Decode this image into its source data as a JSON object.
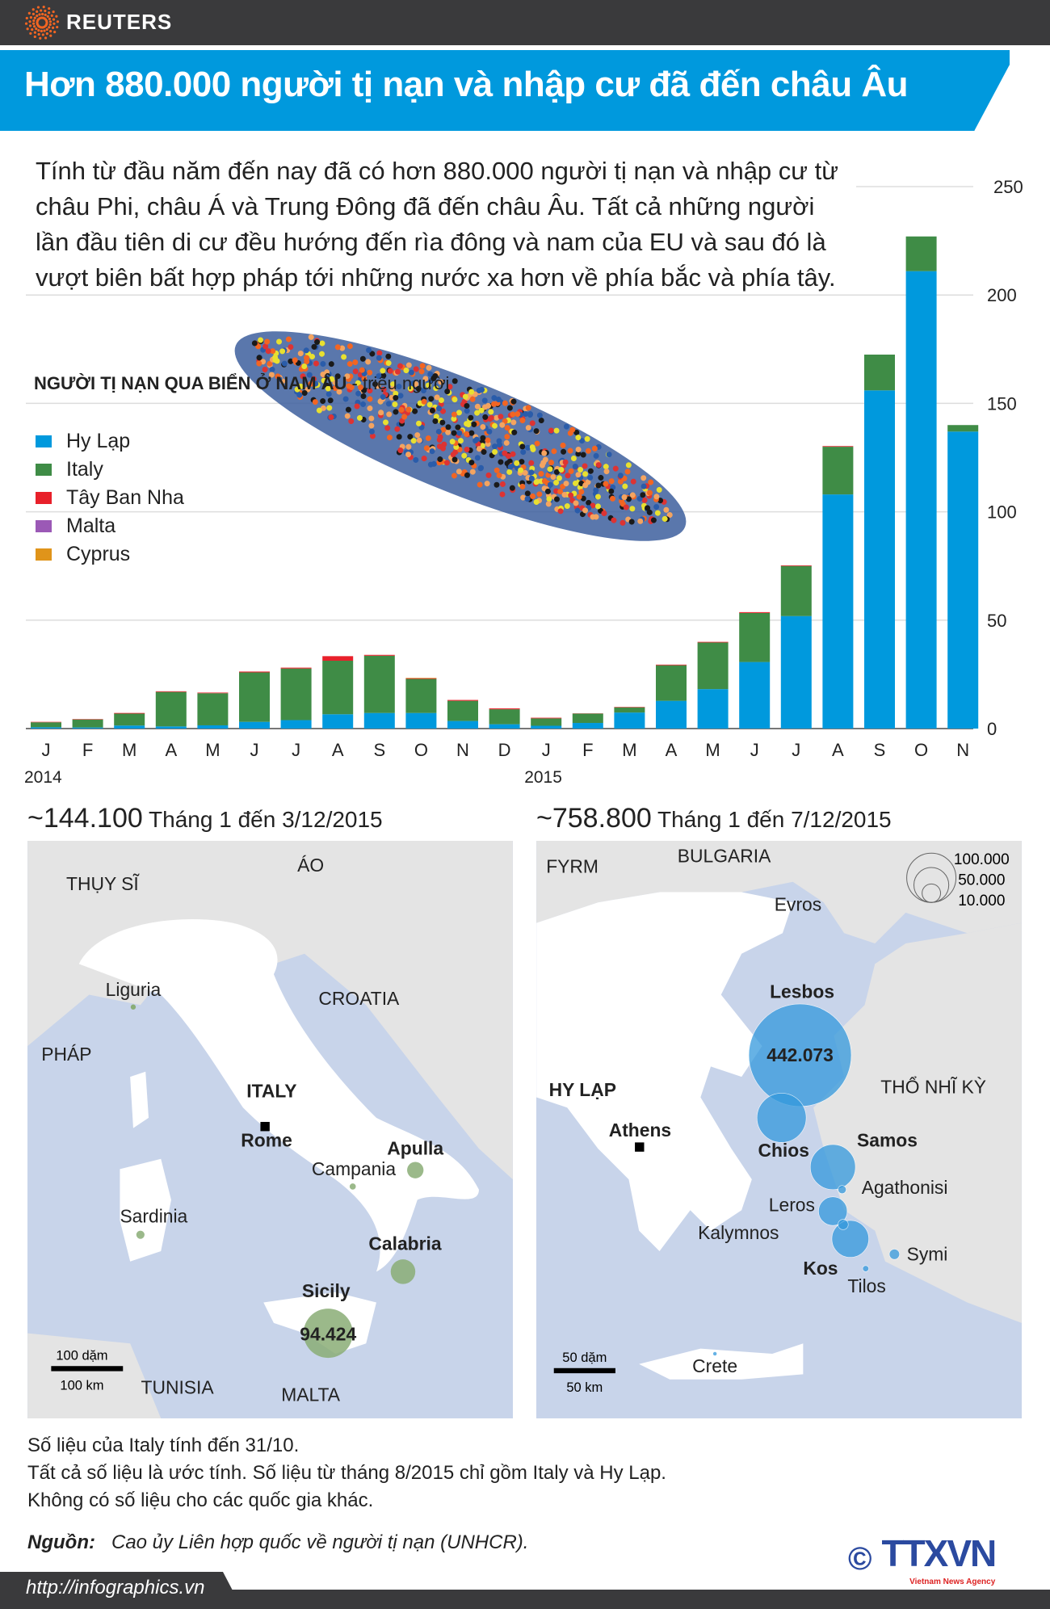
{
  "brand": "REUTERS",
  "title": "Hơn 880.000 người tị nạn và nhập cư đã đến châu Âu",
  "intro": "Tính từ đầu năm đến nay đã có hơn 880.000 người tị nạn và nhập cư từ châu Phi, châu Á và Trung Đông đã đến châu Âu. Tất cả những người lần đầu tiên di cư đều hướng đến rìa đông và nam của EU và sau đó là vượt biên bất hợp pháp tới những nước xa hơn về phía bắc và phía tây.",
  "chart_data": {
    "type": "bar",
    "stacked": true,
    "title": "NGƯỜI TỊ NẠN QUA BIỂN Ở NAM ÂU",
    "unit": "- triệu người",
    "categories": [
      "J",
      "F",
      "M",
      "A",
      "M",
      "J",
      "J",
      "A",
      "S",
      "O",
      "N",
      "D",
      "J",
      "F",
      "M",
      "A",
      "M",
      "J",
      "J",
      "A",
      "S",
      "O",
      "N"
    ],
    "year_labels": [
      "2014",
      "2015"
    ],
    "ylim": [
      0,
      250
    ],
    "yticks": [
      0,
      50,
      100,
      150,
      200,
      250
    ],
    "grid": true,
    "legend_position": "top-left",
    "series": [
      {
        "name": "Hy Lạp",
        "color": "#0099dd",
        "values": [
          0.6,
          0.5,
          1.4,
          1.0,
          1.5,
          3.1,
          3.9,
          6.6,
          7.2,
          7.2,
          3.5,
          2.0,
          1.3,
          2.6,
          7.4,
          12.8,
          18.2,
          30.7,
          51.9,
          108,
          156,
          211,
          137
        ]
      },
      {
        "name": "Italy",
        "color": "#3f8c46",
        "values": [
          2.3,
          3.7,
          5.5,
          15.9,
          14.8,
          22.8,
          23.8,
          24.7,
          26.4,
          15.7,
          9.3,
          6.9,
          3.4,
          4.3,
          2.4,
          16.4,
          21.5,
          22.6,
          23.1,
          22,
          16.5,
          16,
          3
        ]
      },
      {
        "name": "Tây Ban Nha",
        "color": "#e8202a",
        "values": [
          0.2,
          0.2,
          0.3,
          0.3,
          0.3,
          0.4,
          0.4,
          2.1,
          0.4,
          0.3,
          0.4,
          0.4,
          0.3,
          0.1,
          0.2,
          0.3,
          0.3,
          0.4,
          0.3,
          0.3,
          0,
          0,
          0
        ]
      },
      {
        "name": "Malta",
        "color": "#9b59b6",
        "values": [
          0,
          0,
          0,
          0,
          0,
          0,
          0,
          0,
          0,
          0,
          0,
          0,
          0,
          0,
          0,
          0,
          0,
          0,
          0,
          0,
          0,
          0,
          0
        ]
      },
      {
        "name": "Cyprus",
        "color": "#e0941a",
        "values": [
          0,
          0,
          0,
          0,
          0,
          0,
          0,
          0,
          0,
          0.2,
          0,
          0,
          0,
          0,
          0,
          0,
          0,
          0,
          0,
          0,
          0,
          0,
          0
        ]
      }
    ]
  },
  "italy_map": {
    "total": "~144.100",
    "period": "Tháng 1 đến 3/12/2015",
    "labels": {
      "austria": "ÁO",
      "switzerland": "THỤY SĨ",
      "liguria": "Liguria",
      "croatia": "CROATIA",
      "france": "PHÁP",
      "italy": "ITALY",
      "rome": "Rome",
      "apulia": "Apulla",
      "campania": "Campania",
      "sardinia": "Sardinia",
      "calabria": "Calabria",
      "sicily": "Sicily",
      "sicily_value": "94.424",
      "tunisia": "TUNISIA",
      "malta": "MALTA"
    },
    "scale_miles": "100 dặm",
    "scale_km": "100 km"
  },
  "greece_map": {
    "total": "~758.800",
    "period": "Tháng 1 đến 7/12/2015",
    "labels": {
      "fyrm": "FYRM",
      "bulgaria": "BULGARIA",
      "evros": "Evros",
      "lesbos": "Lesbos",
      "lesbos_value": "442.073",
      "turkey": "THỔ NHĨ KỲ",
      "greece": "HY LẠP",
      "athens": "Athens",
      "chios": "Chios",
      "samos": "Samos",
      "agathonisi": "Agathonisi",
      "leros": "Leros",
      "kalymnos": "Kalymnos",
      "kos": "Kos",
      "symi": "Symi",
      "tilos": "Tilos",
      "crete": "Crete"
    },
    "size_legend": [
      "100.000",
      "50.000",
      "10.000"
    ],
    "scale_miles": "50 dặm",
    "scale_km": "50 km"
  },
  "notes": [
    "Số liệu của Italy tính đến 31/10.",
    "Tất cả số liệu là ước tính. Số liệu từ tháng 8/2015 chỉ gồm Italy và Hy Lạp.",
    "Không có số liệu cho các quốc gia khác."
  ],
  "source_label": "Nguồn:",
  "source": "Cao ủy Liên hợp quốc về người tị nạn (UNHCR).",
  "url": "http://infographics.vn",
  "agency": {
    "copyright": "©",
    "name": "TTXVN",
    "tagline": "Vietnam News Agency"
  }
}
